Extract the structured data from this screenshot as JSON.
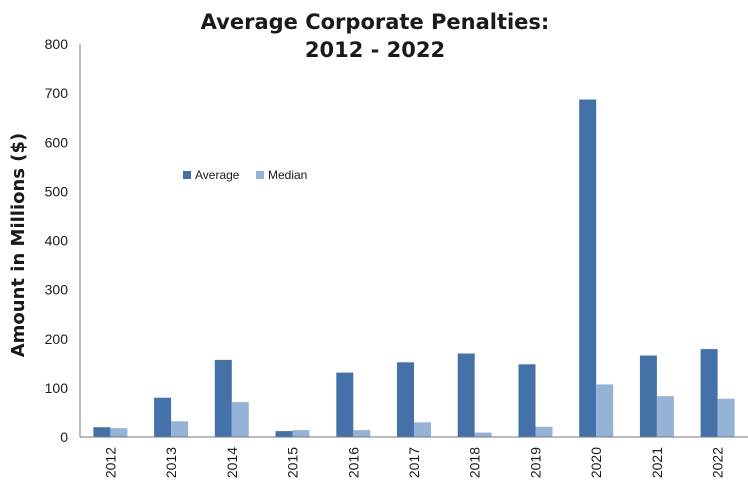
{
  "colors": {
    "average": "#4472a8",
    "median": "#95b3d7"
  },
  "chart_data": {
    "type": "bar",
    "title_lines": [
      "Average Corporate Penalties:",
      "2012 - 2022"
    ],
    "xlabel": "",
    "ylabel": "Amount in Millions ($)",
    "ylim": [
      0,
      800
    ],
    "yticks": [
      "0",
      "100",
      "200",
      "300",
      "400",
      "500",
      "600",
      "700",
      "800"
    ],
    "categories": [
      "2012",
      "2013",
      "2014",
      "2015",
      "2016",
      "2017",
      "2018",
      "2019",
      "2020",
      "2021",
      "2022"
    ],
    "series": [
      {
        "name": "Average",
        "values": [
          20,
          80,
          157,
          12,
          131,
          152,
          170,
          148,
          687,
          166,
          179
        ]
      },
      {
        "name": "Median",
        "values": [
          18,
          32,
          71,
          14,
          14,
          30,
          9,
          21,
          107,
          83,
          78
        ]
      }
    ],
    "legend_position": "upper-left inside plot",
    "grid": false
  }
}
